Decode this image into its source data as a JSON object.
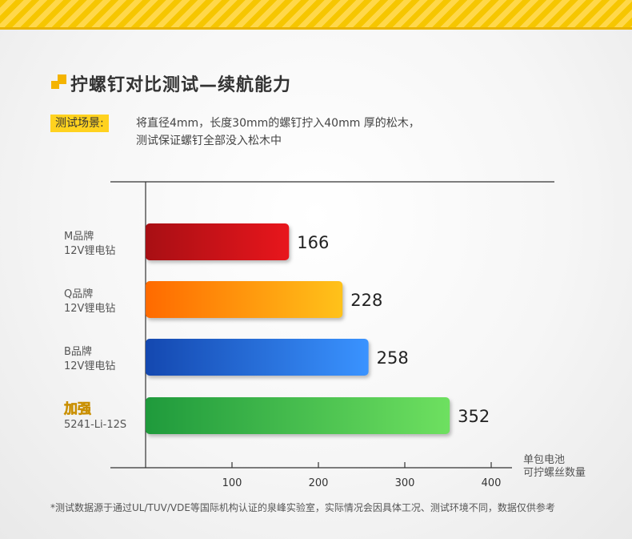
{
  "header": {
    "title": "拧螺钉对比测试—续航能力"
  },
  "scene": {
    "tag": "测试场景:",
    "line1": "将直径4mm，长度30mm的螺钉拧入40mm 厚的松木，",
    "line2": "测试保证螺钉全部没入松木中"
  },
  "colors": {
    "accent": "#ffd21f",
    "series": [
      "#c8151b",
      "#ff8a00",
      "#1e63c7",
      "#2fb14a"
    ]
  },
  "chart_data": {
    "type": "bar",
    "orientation": "horizontal",
    "categories": [
      {
        "name": "M品牌",
        "model": "12V锂电钻"
      },
      {
        "name": "Q品牌",
        "model": "12V锂电钻"
      },
      {
        "name": "B品牌",
        "model": "12V锂电钻"
      },
      {
        "name": "加强",
        "model": "5241-Li-12S",
        "logo": true
      }
    ],
    "values": [
      166,
      228,
      258,
      352
    ],
    "xticks": [
      100,
      200,
      300,
      400
    ],
    "xlim": [
      0,
      420
    ],
    "xlabel": [
      "单包电池",
      "可拧螺丝数量"
    ],
    "grid": false,
    "legend": "none"
  },
  "footnote": "*测试数据源于通过UL/TUV/VDE等国际机构认证的泉峰实验室，实际情况会因具体工况、测试环境不同，数据仅供参考"
}
